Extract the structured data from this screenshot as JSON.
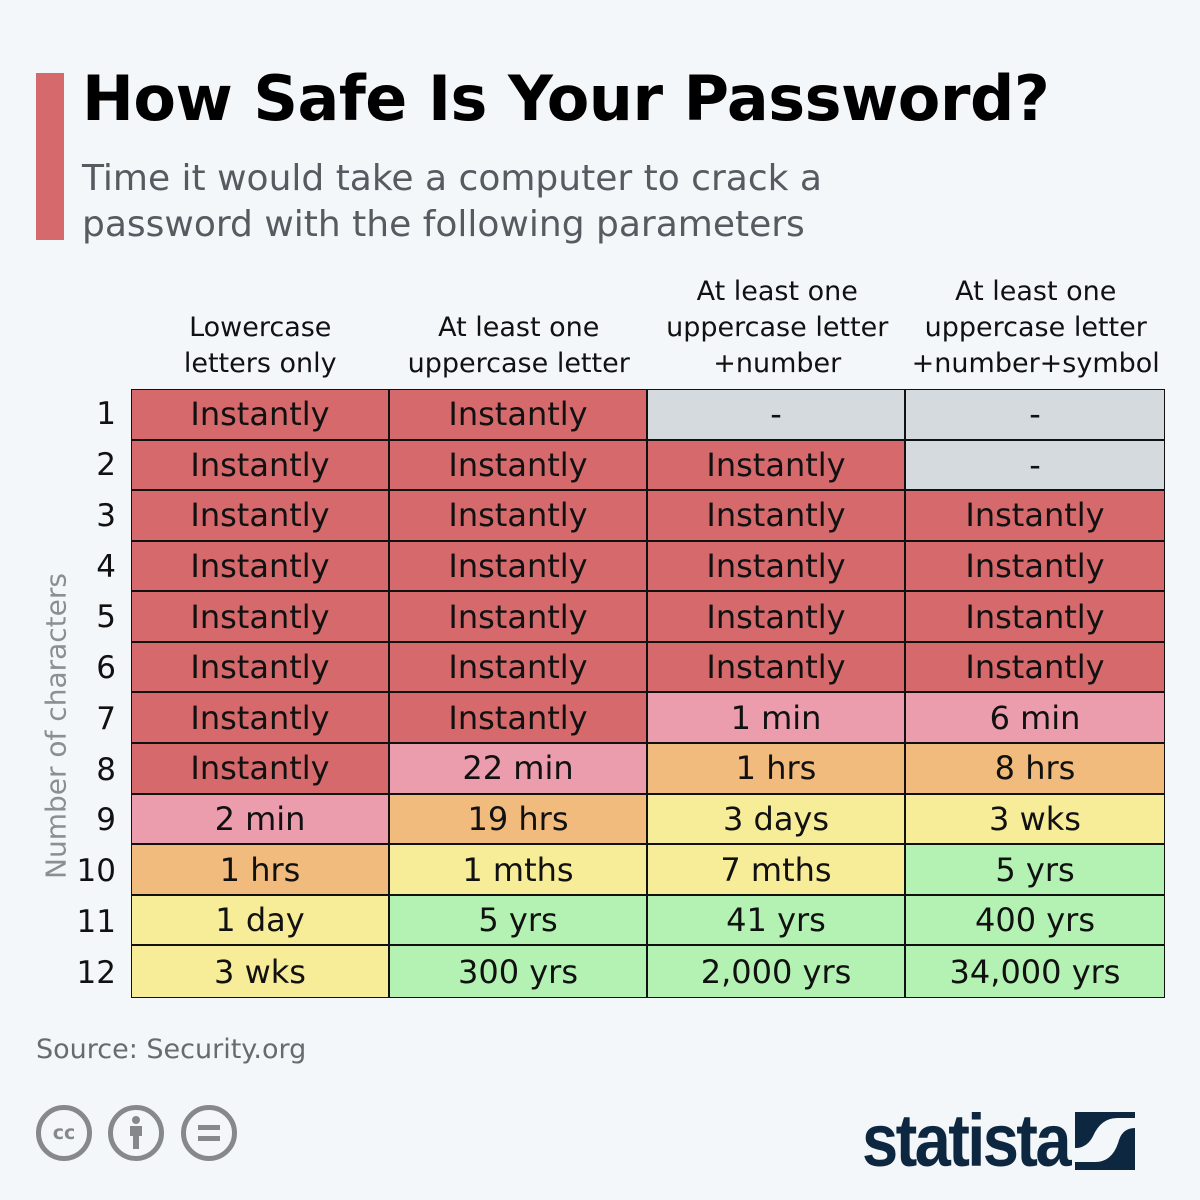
{
  "header": {
    "title": "How Safe Is Your Password?",
    "subtitle": "Time it would take a computer to crack a password with the following parameters"
  },
  "colors": {
    "accent": "#d5696c",
    "instantly": "#d5696c",
    "minutes": "#eb9dae",
    "hours": "#f2bb7e",
    "days_months": "#f7ec98",
    "years": "#b3f2b2",
    "na": "#d5dadf"
  },
  "chart_data": {
    "type": "table",
    "ylabel": "Number of characters",
    "columns": [
      "Lowercase\nletters only",
      "At least one\nuppercase letter",
      "At least one\nuppercase letter\n+number",
      "At least one\nuppercase letter\n+number+symbol"
    ],
    "rows": [
      "1",
      "2",
      "3",
      "4",
      "5",
      "6",
      "7",
      "8",
      "9",
      "10",
      "11",
      "12"
    ],
    "cells": [
      [
        "Instantly",
        "Instantly",
        "-",
        "-"
      ],
      [
        "Instantly",
        "Instantly",
        "Instantly",
        "-"
      ],
      [
        "Instantly",
        "Instantly",
        "Instantly",
        "Instantly"
      ],
      [
        "Instantly",
        "Instantly",
        "Instantly",
        "Instantly"
      ],
      [
        "Instantly",
        "Instantly",
        "Instantly",
        "Instantly"
      ],
      [
        "Instantly",
        "Instantly",
        "Instantly",
        "Instantly"
      ],
      [
        "Instantly",
        "Instantly",
        "1 min",
        "6 min"
      ],
      [
        "Instantly",
        "22 min",
        "1 hrs",
        "8 hrs"
      ],
      [
        "2 min",
        "19 hrs",
        "3 days",
        "3 wks"
      ],
      [
        "1 hrs",
        "1 mths",
        "7 mths",
        "5 yrs"
      ],
      [
        "1 day",
        "5 yrs",
        "41 yrs",
        "400 yrs"
      ],
      [
        "3 wks",
        "300 yrs",
        "2,000 yrs",
        "34,000 yrs"
      ]
    ],
    "levels": [
      [
        "instantly",
        "instantly",
        "na",
        "na"
      ],
      [
        "instantly",
        "instantly",
        "instantly",
        "na"
      ],
      [
        "instantly",
        "instantly",
        "instantly",
        "instantly"
      ],
      [
        "instantly",
        "instantly",
        "instantly",
        "instantly"
      ],
      [
        "instantly",
        "instantly",
        "instantly",
        "instantly"
      ],
      [
        "instantly",
        "instantly",
        "instantly",
        "instantly"
      ],
      [
        "instantly",
        "instantly",
        "minutes",
        "minutes"
      ],
      [
        "instantly",
        "minutes",
        "hours",
        "hours"
      ],
      [
        "minutes",
        "hours",
        "days_months",
        "days_months"
      ],
      [
        "hours",
        "days_months",
        "days_months",
        "years"
      ],
      [
        "days_months",
        "years",
        "years",
        "years"
      ],
      [
        "days_months",
        "years",
        "years",
        "years"
      ]
    ]
  },
  "footer": {
    "source": "Source: Security.org",
    "license_icons": [
      "cc-icon",
      "attribution-icon",
      "no-derivatives-icon"
    ],
    "logo": "statista"
  }
}
